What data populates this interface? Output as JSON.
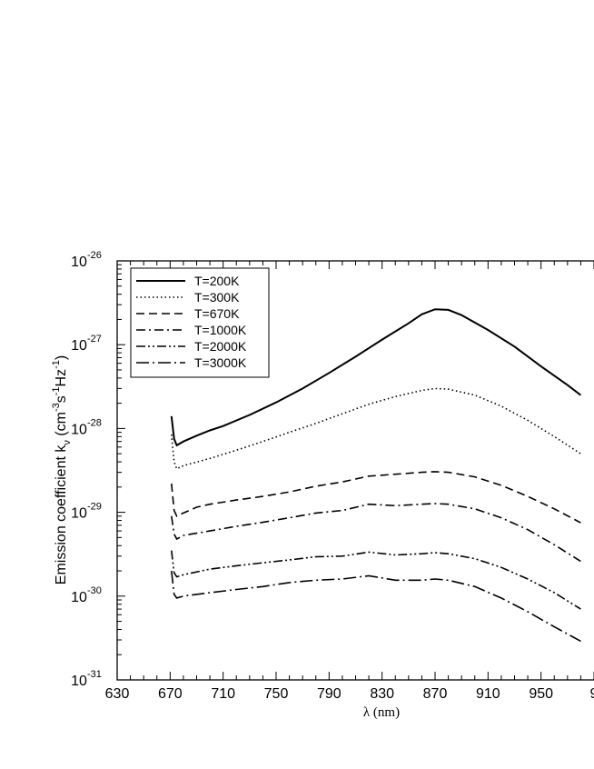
{
  "chart_data": {
    "type": "line",
    "xlabel": "λ (nm)",
    "ylabel": {
      "prefix": "Emission coefficient k",
      "subscript": "ν",
      "unit_open": " (cm",
      "exp1": "-3",
      "mid1": "s",
      "exp2": "-1",
      "mid2": "Hz",
      "exp3": "-1",
      "unit_close": ")"
    },
    "xlim": [
      630,
      990
    ],
    "ylim": [
      1e-31,
      1e-26
    ],
    "yscale": "log",
    "grid": false,
    "legend_position": "top-left",
    "x_ticks": [
      "630",
      "670",
      "710",
      "750",
      "790",
      "830",
      "870",
      "910",
      "950",
      "9"
    ],
    "y_ticks": [
      {
        "base": "10",
        "exp": "-31"
      },
      {
        "base": "10",
        "exp": "-30"
      },
      {
        "base": "10",
        "exp": "-29"
      },
      {
        "base": "10",
        "exp": "-28"
      },
      {
        "base": "10",
        "exp": "-27"
      },
      {
        "base": "10",
        "exp": "-26"
      }
    ],
    "series": [
      {
        "name": "T=200K",
        "dash": "solid",
        "points": [
          [
            671,
            1.4e-28
          ],
          [
            673,
            7.5e-29
          ],
          [
            675,
            6.3e-29
          ],
          [
            680,
            7e-29
          ],
          [
            690,
            8.2e-29
          ],
          [
            700,
            9.5e-29
          ],
          [
            710,
            1.07e-28
          ],
          [
            730,
            1.45e-28
          ],
          [
            750,
            2.05e-28
          ],
          [
            770,
            3e-28
          ],
          [
            790,
            4.6e-28
          ],
          [
            810,
            7.2e-28
          ],
          [
            830,
            1.15e-27
          ],
          [
            850,
            1.8e-27
          ],
          [
            860,
            2.3e-27
          ],
          [
            870,
            2.65e-27
          ],
          [
            880,
            2.6e-27
          ],
          [
            890,
            2.25e-27
          ],
          [
            910,
            1.5e-27
          ],
          [
            930,
            9.5e-28
          ],
          [
            950,
            5.5e-28
          ],
          [
            970,
            3.3e-28
          ],
          [
            980,
            2.5e-28
          ]
        ]
      },
      {
        "name": "T=300K",
        "dash": "dotted",
        "points": [
          [
            671,
            8.5e-29
          ],
          [
            673,
            4e-29
          ],
          [
            675,
            3.3e-29
          ],
          [
            680,
            3.6e-29
          ],
          [
            700,
            4.4e-29
          ],
          [
            720,
            5.5e-29
          ],
          [
            740,
            7e-29
          ],
          [
            760,
            9e-29
          ],
          [
            780,
            1.15e-28
          ],
          [
            800,
            1.5e-28
          ],
          [
            820,
            1.95e-28
          ],
          [
            840,
            2.4e-28
          ],
          [
            860,
            2.85e-28
          ],
          [
            870,
            3e-28
          ],
          [
            880,
            2.95e-28
          ],
          [
            900,
            2.5e-28
          ],
          [
            920,
            1.85e-28
          ],
          [
            940,
            1.25e-28
          ],
          [
            960,
            8e-29
          ],
          [
            980,
            5e-29
          ]
        ]
      },
      {
        "name": "T=670K",
        "dash": "dashed",
        "points": [
          [
            671,
            2.2e-29
          ],
          [
            673,
            1.05e-29
          ],
          [
            675,
            9e-30
          ],
          [
            680,
            9.8e-30
          ],
          [
            690,
            1.15e-29
          ],
          [
            700,
            1.25e-29
          ],
          [
            720,
            1.4e-29
          ],
          [
            740,
            1.55e-29
          ],
          [
            760,
            1.75e-29
          ],
          [
            780,
            2.05e-29
          ],
          [
            800,
            2.3e-29
          ],
          [
            820,
            2.7e-29
          ],
          [
            840,
            2.85e-29
          ],
          [
            860,
            3e-29
          ],
          [
            870,
            3.05e-29
          ],
          [
            880,
            3e-29
          ],
          [
            900,
            2.65e-29
          ],
          [
            920,
            2.1e-29
          ],
          [
            940,
            1.55e-29
          ],
          [
            960,
            1.1e-29
          ],
          [
            980,
            7.5e-30
          ]
        ]
      },
      {
        "name": "T=1000K",
        "dash": "dashdot",
        "points": [
          [
            671,
            9e-30
          ],
          [
            673,
            5.5e-30
          ],
          [
            675,
            4.8e-30
          ],
          [
            680,
            5.3e-30
          ],
          [
            700,
            6e-30
          ],
          [
            720,
            6.8e-30
          ],
          [
            740,
            7.6e-30
          ],
          [
            760,
            8.6e-30
          ],
          [
            780,
            9.8e-30
          ],
          [
            800,
            1.05e-29
          ],
          [
            820,
            1.25e-29
          ],
          [
            840,
            1.2e-29
          ],
          [
            860,
            1.25e-29
          ],
          [
            870,
            1.27e-29
          ],
          [
            880,
            1.25e-29
          ],
          [
            900,
            1.1e-29
          ],
          [
            920,
            8.6e-30
          ],
          [
            940,
            6.2e-30
          ],
          [
            960,
            4.1e-30
          ],
          [
            980,
            2.6e-30
          ]
        ]
      },
      {
        "name": "T=2000K",
        "dash": "dashdotdot",
        "points": [
          [
            671,
            3.5e-30
          ],
          [
            673,
            1.9e-30
          ],
          [
            675,
            1.7e-30
          ],
          [
            680,
            1.8e-30
          ],
          [
            700,
            2.1e-30
          ],
          [
            720,
            2.3e-30
          ],
          [
            740,
            2.5e-30
          ],
          [
            760,
            2.7e-30
          ],
          [
            780,
            2.95e-30
          ],
          [
            800,
            3e-30
          ],
          [
            820,
            3.35e-30
          ],
          [
            840,
            3.1e-30
          ],
          [
            860,
            3.2e-30
          ],
          [
            870,
            3.3e-30
          ],
          [
            880,
            3.2e-30
          ],
          [
            900,
            2.8e-30
          ],
          [
            920,
            2.2e-30
          ],
          [
            940,
            1.6e-30
          ],
          [
            960,
            1.1e-30
          ],
          [
            980,
            7e-31
          ]
        ]
      },
      {
        "name": "T=3000K",
        "dash": "dashdotlong",
        "points": [
          [
            671,
            2e-30
          ],
          [
            673,
            1.05e-30
          ],
          [
            675,
            9.5e-31
          ],
          [
            680,
            1e-30
          ],
          [
            700,
            1.1e-30
          ],
          [
            720,
            1.2e-30
          ],
          [
            740,
            1.3e-30
          ],
          [
            760,
            1.45e-30
          ],
          [
            780,
            1.55e-30
          ],
          [
            800,
            1.6e-30
          ],
          [
            820,
            1.75e-30
          ],
          [
            840,
            1.55e-30
          ],
          [
            860,
            1.55e-30
          ],
          [
            870,
            1.6e-30
          ],
          [
            880,
            1.55e-30
          ],
          [
            900,
            1.3e-30
          ],
          [
            920,
            9.5e-31
          ],
          [
            940,
            6.5e-31
          ],
          [
            960,
            4.3e-31
          ],
          [
            980,
            2.9e-31
          ]
        ]
      }
    ]
  }
}
